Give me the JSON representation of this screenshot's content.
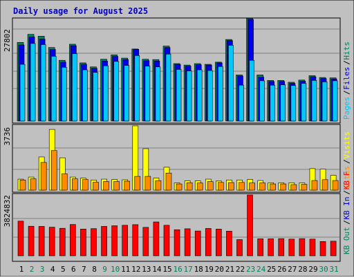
{
  "chart_data": {
    "type": "bar",
    "title": "Daily usage for August 2025",
    "categories": [
      "1",
      "2",
      "3",
      "4",
      "5",
      "6",
      "7",
      "8",
      "9",
      "10",
      "11",
      "12",
      "13",
      "14",
      "15",
      "16",
      "17",
      "18",
      "19",
      "20",
      "21",
      "22",
      "23",
      "24",
      "25",
      "26",
      "27",
      "28",
      "29",
      "30",
      "31"
    ],
    "weekend_days": [
      "2",
      "3",
      "9",
      "10",
      "16",
      "17",
      "23",
      "24",
      "30",
      "31"
    ],
    "colors": {
      "background": "#c0c0c0",
      "gridline": "#7f7f7f",
      "title": "#0000cc",
      "hits": "#00805c",
      "files": "#0000e6",
      "pages": "#00c8f8",
      "visits": "#ffff00",
      "sites": "#ff8c00",
      "kb_in": "#0000e6",
      "kb_out": "#00805c",
      "kb_f": "#ff0000",
      "weekday_label": "#000000",
      "weekend_label": "#00805c"
    },
    "panels": [
      {
        "id": "top",
        "max_label": "27802",
        "ymax": 27802,
        "legend": [
          {
            "text": "Hits",
            "color": "#00805c"
          },
          {
            "text": "Files",
            "color": "#0000e6"
          },
          {
            "text": "Pages",
            "color": "#00c8f8"
          }
        ],
        "series": [
          {
            "name": "Hits",
            "values": [
              21500,
              23700,
              23200,
              20100,
              16600,
              21000,
              15900,
              14800,
              16900,
              18100,
              17200,
              19700,
              16900,
              16800,
              20500,
              15700,
              15300,
              15700,
              15500,
              16100,
              22300,
              12600,
              28100,
              12600,
              11100,
              11100,
              10600,
              11200,
              12400,
              11900,
              11800
            ]
          },
          {
            "name": "Files",
            "values": [
              20800,
              23000,
              22400,
              19600,
              16100,
              20600,
              15500,
              14400,
              16400,
              17700,
              16800,
              19600,
              16500,
              16400,
              20100,
              15500,
              15000,
              15400,
              15300,
              15900,
              22000,
              12300,
              27800,
              12000,
              10800,
              10800,
              10300,
              10900,
              12100,
              11600,
              11500
            ]
          },
          {
            "name": "Pages",
            "values": [
              15500,
              21200,
              20900,
              17700,
              14700,
              18400,
              14000,
              13300,
              15100,
              16300,
              15200,
              17900,
              15000,
              14800,
              18300,
              14100,
              13700,
              14000,
              13800,
              14900,
              20700,
              9800,
              16600,
              11000,
              9800,
              9900,
              9700,
              10300,
              11100,
              10700,
              11000
            ]
          }
        ]
      },
      {
        "id": "middle",
        "max_label": "3736",
        "ymax": 3736,
        "legend": [
          {
            "text": "Visits",
            "color": "#ffff00"
          },
          {
            "text": "Sites",
            "color": "#ff8c00"
          }
        ],
        "series": [
          {
            "name": "Visits",
            "values": [
              640,
              760,
              1930,
              3530,
              1880,
              760,
              700,
              590,
              640,
              620,
              600,
              3736,
              2410,
              700,
              1330,
              420,
              540,
              540,
              640,
              530,
              590,
              590,
              620,
              560,
              430,
              430,
              430,
              420,
              1250,
              1220,
              860
            ]
          },
          {
            "name": "Sites",
            "values": [
              590,
              660,
              1610,
              2300,
              950,
              660,
              620,
              460,
              500,
              500,
              520,
              800,
              800,
              550,
              990,
              360,
              430,
              420,
              500,
              450,
              440,
              450,
              420,
              420,
              360,
              360,
              320,
              340,
              560,
              610,
              560
            ]
          }
        ]
      },
      {
        "id": "bottom",
        "max_label": "3824832",
        "ymax": 3824832,
        "legend": [
          {
            "text": "KB F",
            "color": "#ff0000"
          },
          {
            "text": "KB In",
            "color": "#0000e6"
          },
          {
            "text": "KB Out",
            "color": "#00805c"
          }
        ],
        "series": [
          {
            "name": "KB F",
            "values": [
              2180000,
              1860000,
              1850000,
              1800000,
              1730000,
              1970000,
              1680000,
              1710000,
              1850000,
              1890000,
              1920000,
              1960000,
              1790000,
              2130000,
              1920000,
              1640000,
              1700000,
              1560000,
              1720000,
              1680000,
              1550000,
              1020000,
              3824832,
              1070000,
              1070000,
              1080000,
              1050000,
              1080000,
              1050000,
              900000,
              920000
            ]
          }
        ]
      }
    ]
  }
}
